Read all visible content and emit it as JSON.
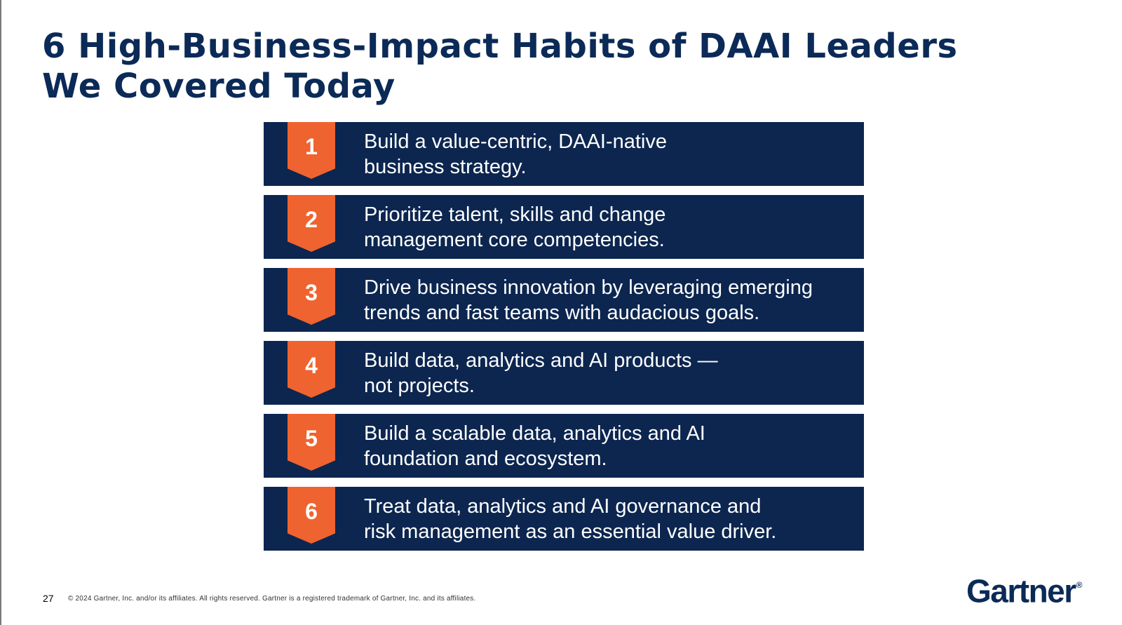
{
  "slide": {
    "title_lines": [
      "6 High-Business-Impact Habits of DAAI Leaders",
      "We Covered Today"
    ],
    "habits": [
      {
        "number": "1",
        "lines": [
          "Build a value-centric, DAAI-native",
          "business strategy."
        ]
      },
      {
        "number": "2",
        "lines": [
          "Prioritize talent, skills and change",
          "management core competencies."
        ]
      },
      {
        "number": "3",
        "lines": [
          "Drive business innovation by leveraging emerging",
          "trends and fast teams with audacious goals."
        ]
      },
      {
        "number": "4",
        "lines": [
          "Build data, analytics and AI products —",
          "not projects."
        ]
      },
      {
        "number": "5",
        "lines": [
          "Build a scalable data, analytics and AI",
          "foundation and ecosystem."
        ]
      },
      {
        "number": "6",
        "lines": [
          "Treat data, analytics and AI governance and",
          "risk management as an essential value driver."
        ]
      }
    ]
  },
  "footer": {
    "page_number": "27",
    "copyright": "© 2024 Gartner, Inc. and/or its affiliates. All rights reserved. Gartner is a registered trademark of Gartner, Inc. and its affiliates.",
    "logo_text": "Gartner",
    "logo_mark": "®"
  },
  "colors": {
    "title": "#0b2a57",
    "row_background": "#0c2650",
    "badge": "#ef6330",
    "row_text": "#ffffff"
  }
}
